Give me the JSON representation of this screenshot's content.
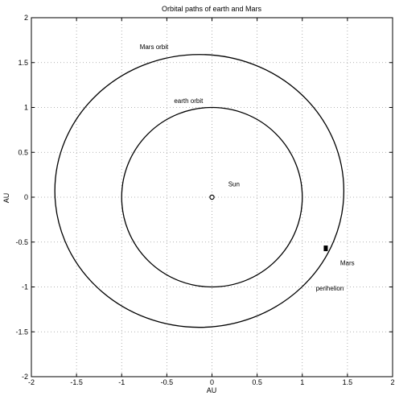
{
  "chart_data": {
    "type": "line",
    "title": "Orbital paths of earth and Mars",
    "xlabel": "AU",
    "ylabel": "AU",
    "xlim": [
      -2,
      2
    ],
    "ylim": [
      -2,
      2
    ],
    "grid": true,
    "x_ticks": [
      -2,
      -1.5,
      -1,
      -0.5,
      0,
      0.5,
      1,
      1.5,
      2
    ],
    "y_ticks": [
      -2,
      -1.5,
      -1,
      -0.5,
      0,
      0.5,
      1,
      1.5,
      2
    ],
    "x_tick_labels": [
      "-2",
      "-1.5",
      "-1",
      "-0.5",
      "0",
      "0.5",
      "1",
      "1.5",
      "2"
    ],
    "y_tick_labels": [
      "-2",
      "-1.5",
      "-1",
      "-0.5",
      "0",
      "0.5",
      "1",
      "1.5",
      "2"
    ],
    "series": [
      {
        "name": "earth orbit",
        "kind": "ellipse",
        "center": [
          0,
          0
        ],
        "rx": 1.0,
        "ry": 1.0
      },
      {
        "name": "Mars orbit",
        "kind": "ellipse",
        "center": [
          -0.14,
          0.07
        ],
        "rx": 1.6,
        "ry": 1.52
      }
    ],
    "points": [
      {
        "name": "Sun",
        "x": 0,
        "y": 0,
        "marker": "circle"
      },
      {
        "name": "Mars",
        "x": 1.26,
        "y": -0.57,
        "marker": "square"
      }
    ],
    "annotations": [
      {
        "text": "Mars orbit",
        "x": -0.8,
        "y": 1.65
      },
      {
        "text": "earth orbit",
        "x": -0.42,
        "y": 1.05
      },
      {
        "text": "Sun",
        "x": 0.18,
        "y": 0.12
      },
      {
        "text": "Mars",
        "x": 1.42,
        "y": -0.76
      },
      {
        "text": "perihelion",
        "x": 1.15,
        "y": -1.04
      }
    ]
  }
}
